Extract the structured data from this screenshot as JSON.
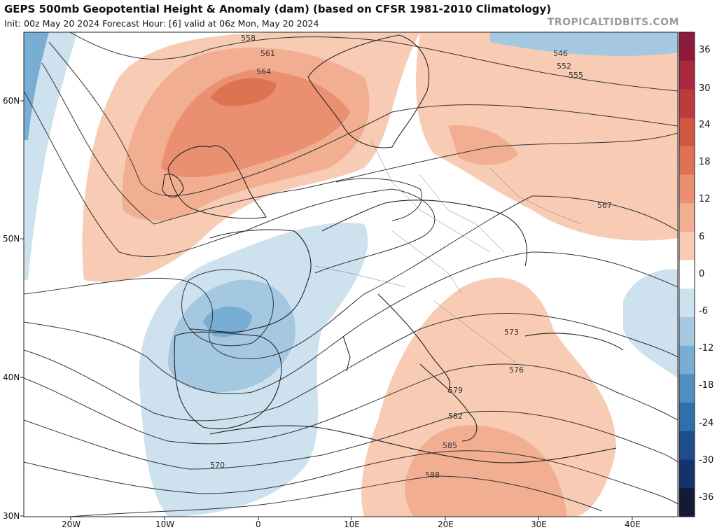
{
  "header": {
    "title": "GEPS 500mb Geopotential Height & Anomaly (dam) (based on CFSR 1981-2010 Climatology)",
    "subtitle": "Init: 00z May 20 2024   Forecast Hour: [6]   valid at 06z Mon, May 20 2024",
    "brand": "TROPICALTIDBITS.COM"
  },
  "map": {
    "region": "Europe / North Atlantic",
    "lat_labels": [
      "60N",
      "50N",
      "40N",
      "30N"
    ],
    "lon_labels": [
      "20W",
      "10W",
      "0",
      "10E",
      "20E",
      "30E",
      "40E"
    ],
    "contour_labels": [
      "546",
      "552",
      "555",
      "558",
      "561",
      "564",
      "567",
      "570",
      "573",
      "576",
      "579",
      "582",
      "585",
      "588"
    ]
  },
  "colorbar": {
    "labels": [
      "36",
      "30",
      "24",
      "18",
      "12",
      "6",
      "0",
      "-6",
      "-12",
      "-18",
      "-24",
      "-30",
      "-36"
    ],
    "colors": [
      "#8e1a3c",
      "#a8283d",
      "#bd3b3e",
      "#cf5640",
      "#de7352",
      "#ea9070",
      "#f2ae90",
      "#f8ccb4",
      "#ffffff",
      "#cde1ee",
      "#a4c8e2",
      "#78aed4",
      "#4f8fc2",
      "#2f6fab",
      "#1d4f8c",
      "#15336b",
      "#121a35"
    ]
  }
}
